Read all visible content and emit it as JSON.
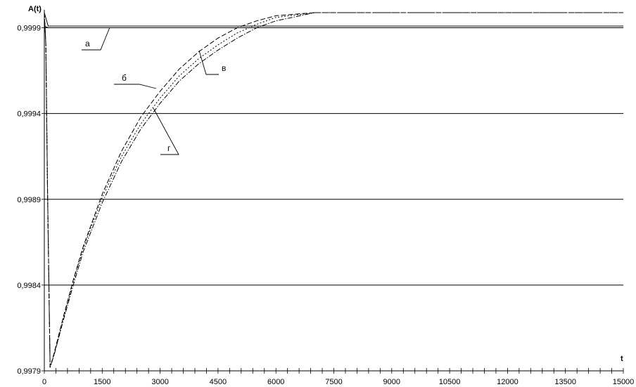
{
  "chart_data": {
    "type": "line",
    "xlabel": "t",
    "ylabel": "A(t)",
    "xlim": [
      0,
      15000
    ],
    "ylim": [
      0.9979,
      1.0001
    ],
    "x_ticks": [
      0,
      1500,
      3000,
      4500,
      6000,
      7500,
      9000,
      10500,
      12000,
      13500,
      15000
    ],
    "x_tick_labels": [
      "0",
      "1500",
      "3000",
      "4500",
      "6000",
      "7500",
      "9000",
      "10500",
      "12000",
      "13500",
      "15000"
    ],
    "y_ticks": [
      0.9979,
      0.9984,
      0.9989,
      0.9994,
      0.9999
    ],
    "y_tick_labels": [
      "0,9979",
      "0,9984",
      "0,9989",
      "0,9994",
      "0,9999"
    ],
    "grid": "horizontal",
    "series": [
      {
        "name": "а",
        "style": "solid",
        "x": [
          0,
          100,
          500,
          1000,
          5000,
          10000,
          15000
        ],
        "y": [
          1.0001,
          0.99991,
          0.99991,
          0.99991,
          0.99991,
          0.99991,
          0.99991
        ]
      },
      {
        "name": "а",
        "style": "solid",
        "x": [
          0,
          100,
          500,
          1000,
          5000,
          10000,
          15000
        ],
        "y": [
          0.99991,
          0.9999,
          0.9999,
          0.9999,
          0.9999,
          0.9999,
          0.9999
        ]
      },
      {
        "name": "б",
        "style": "dashed",
        "x": [
          0,
          40,
          80,
          150,
          250,
          500,
          750,
          1000,
          1500,
          2000,
          2500,
          3000,
          3500,
          4000,
          4500,
          5000,
          5500,
          6000,
          7000,
          8000,
          9000,
          10500,
          12000,
          13500,
          15000
        ],
        "y": [
          1.0001,
          0.9998,
          0.999,
          0.99792,
          0.998,
          0.99822,
          0.99843,
          0.99862,
          0.99893,
          0.99918,
          0.99938,
          0.99953,
          0.99966,
          0.99976,
          0.99984,
          0.9999,
          0.99994,
          0.99997,
          1.00001,
          1.00002,
          1.00003,
          1.00003,
          1.00003,
          1.00003,
          1.00003
        ]
      },
      {
        "name": "в",
        "style": "dotted",
        "x": [
          0,
          40,
          80,
          150,
          250,
          500,
          750,
          1000,
          1500,
          2000,
          2500,
          3000,
          3500,
          4000,
          4500,
          5000,
          5500,
          6000,
          7000,
          8000,
          9000,
          10500,
          12000,
          13500,
          15000
        ],
        "y": [
          1.0001,
          0.9998,
          0.999,
          0.99792,
          0.99799,
          0.99821,
          0.99842,
          0.99861,
          0.99891,
          0.99915,
          0.99934,
          0.99949,
          0.99962,
          0.99972,
          0.9998,
          0.99987,
          0.99992,
          0.99996,
          1.0,
          1.00002,
          1.00003,
          1.00003,
          1.00003,
          1.00003,
          1.00003
        ]
      },
      {
        "name": "г",
        "style": "dash-dot",
        "x": [
          0,
          40,
          80,
          150,
          250,
          500,
          750,
          1000,
          1500,
          2000,
          2500,
          3000,
          3500,
          4000,
          4500,
          5000,
          5500,
          6000,
          7000,
          8000,
          9000,
          10500,
          12000,
          13500,
          15000
        ],
        "y": [
          1.0001,
          0.9998,
          0.999,
          0.99792,
          0.99799,
          0.9982,
          0.9984,
          0.99859,
          0.99888,
          0.99912,
          0.99931,
          0.99946,
          0.99959,
          0.99969,
          0.99977,
          0.99984,
          0.9999,
          0.99994,
          0.99999,
          1.00001,
          1.00003,
          1.00003,
          1.00003,
          1.00003,
          1.00003
        ]
      }
    ],
    "annotations": [
      "а",
      "б",
      "в",
      "г"
    ]
  }
}
